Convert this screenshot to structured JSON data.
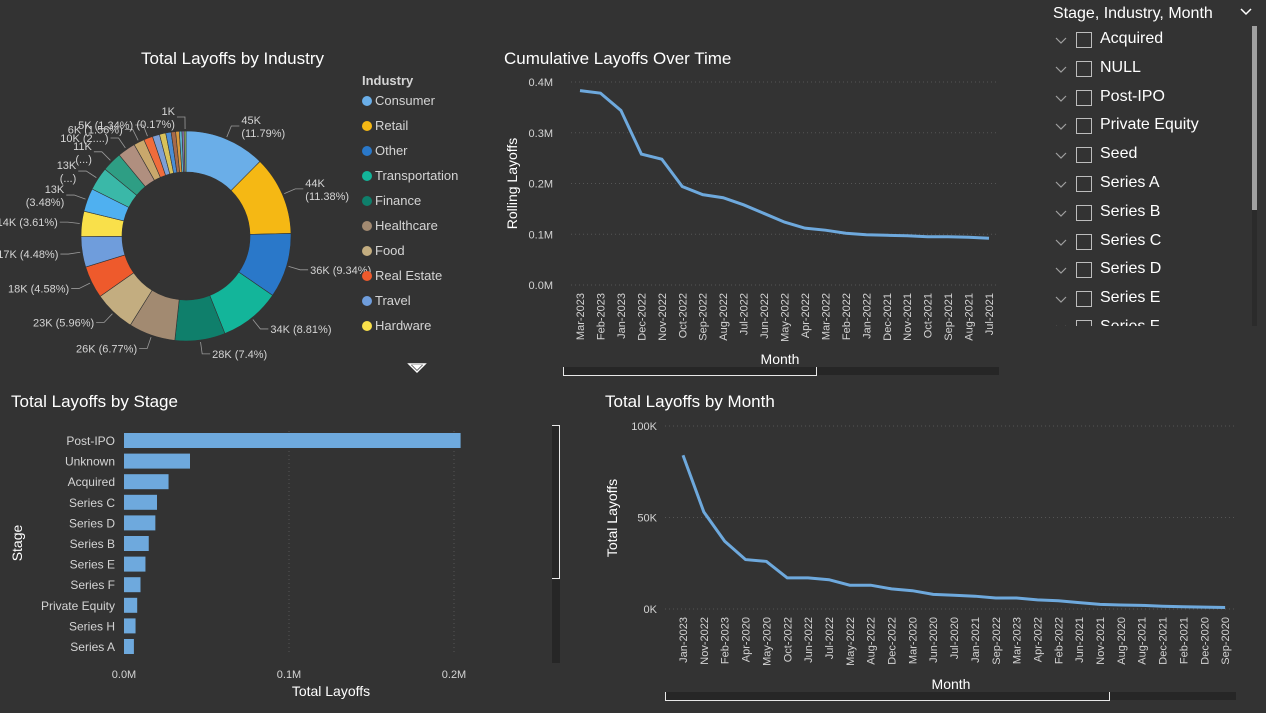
{
  "colors": {
    "background": "#333333",
    "line": "#6ea9dd",
    "bar": "#6ea9dd",
    "grid": "#555555",
    "axis_text": "#d4d4d4"
  },
  "slicer": {
    "header": "Stage, Industry, Month",
    "chevron_icon": "chevron-down-icon",
    "items": [
      "Acquired",
      "NULL",
      "Post-IPO",
      "Private Equity",
      "Seed",
      "Series A",
      "Series B",
      "Series C",
      "Series D",
      "Series E",
      "Series F"
    ]
  },
  "chart_data": [
    {
      "id": "industry_donut",
      "type": "pie",
      "title": "Total Layoffs by Industry",
      "legend_title": "Industry",
      "legend_placement": "right",
      "legend_entries": [
        {
          "name": "Consumer",
          "color": "#6aaee8"
        },
        {
          "name": "Retail",
          "color": "#f5b814"
        },
        {
          "name": "Other",
          "color": "#2a78c9"
        },
        {
          "name": "Transportation",
          "color": "#13b59a"
        },
        {
          "name": "Finance",
          "color": "#0f7f6b"
        },
        {
          "name": "Healthcare",
          "color": "#a28a71"
        },
        {
          "name": "Food",
          "color": "#c3ad80"
        },
        {
          "name": "Real Estate",
          "color": "#ee5a2c"
        },
        {
          "name": "Travel",
          "color": "#6f9ddc"
        },
        {
          "name": "Hardware",
          "color": "#f9e04a"
        }
      ],
      "slices": [
        {
          "value": 45,
          "label": "45K (11.79%)",
          "color": "#6aaee8"
        },
        {
          "value": 44,
          "label": "44K (11.38%)",
          "color": "#f5b814"
        },
        {
          "value": 36,
          "label": "36K (9.34%)",
          "color": "#2a78c9"
        },
        {
          "value": 34,
          "label": "34K (8.81%)",
          "color": "#13b59a"
        },
        {
          "value": 28,
          "label": "28K (7.4%)",
          "color": "#0f7f6b"
        },
        {
          "value": 26,
          "label": "26K (6.77%)",
          "color": "#a28a71"
        },
        {
          "value": 23,
          "label": "23K (5.96%)",
          "color": "#c3ad80"
        },
        {
          "value": 18,
          "label": "18K (4.58%)",
          "color": "#ee5a2c"
        },
        {
          "value": 17,
          "label": "17K (4.48%)",
          "color": "#6f9ddc"
        },
        {
          "value": 14,
          "label": "14K (3.61%)",
          "color": "#f9e04a"
        },
        {
          "value": 13,
          "label": "13K (3.48%)",
          "color": "#4fb0f0"
        },
        {
          "value": 13,
          "label": "13K (...)",
          "color": "#3ab8a8"
        },
        {
          "value": 11,
          "label": "11K (...)",
          "color": "#2e9e84"
        },
        {
          "value": 10,
          "label": "10K (2....)",
          "color": "#b08f7f"
        },
        {
          "value": 6,
          "label": "6K (1.56%)",
          "color": "#c9a86c"
        },
        {
          "value": 5,
          "label": "5K (1.34%)",
          "color": "#f06c3c"
        },
        {
          "value": 4,
          "label": "",
          "color": "#7d9fd6"
        },
        {
          "value": 3.5,
          "label": "",
          "color": "#d9c25a"
        },
        {
          "value": 3,
          "label": "",
          "color": "#4a8ed6"
        },
        {
          "value": 2.5,
          "label": "",
          "color": "#a66a4a"
        },
        {
          "value": 2,
          "label": "",
          "color": "#d89a3e"
        },
        {
          "value": 1.5,
          "label": "",
          "color": "#5ab0c8"
        },
        {
          "value": 1.2,
          "label": "",
          "color": "#8a6fb0"
        },
        {
          "value": 1,
          "label": "1K (0.17%)",
          "color": "#9ac26a"
        }
      ]
    },
    {
      "id": "cumulative_line",
      "type": "line",
      "title": "Cumulative Layoffs Over Time",
      "xlabel": "Month",
      "ylabel": "Rolling Layoffs",
      "y_ticks": [
        "0.4M",
        "0.3M",
        "0.2M",
        "0.1M",
        "0.0M"
      ],
      "ylim": [
        0,
        0.4
      ],
      "x": [
        "Mar-2023",
        "Feb-2023",
        "Jan-2023",
        "Dec-2022",
        "Nov-2022",
        "Oct-2022",
        "Sep-2022",
        "Aug-2022",
        "Jul-2022",
        "Jun-2022",
        "May-2022",
        "Apr-2022",
        "Mar-2022",
        "Feb-2022",
        "Jan-2022",
        "Dec-2021",
        "Nov-2021",
        "Oct-2021",
        "Sep-2021",
        "Aug-2021",
        "Jul-2021"
      ],
      "values": [
        0.383,
        0.378,
        0.344,
        0.258,
        0.248,
        0.194,
        0.178,
        0.172,
        0.158,
        0.141,
        0.124,
        0.112,
        0.108,
        0.102,
        0.099,
        0.098,
        0.097,
        0.095,
        0.095,
        0.094,
        0.092
      ]
    },
    {
      "id": "stage_bar",
      "type": "bar",
      "orientation": "horizontal",
      "title": "Total Layoffs by Stage",
      "xlabel": "Total Layoffs",
      "ylabel": "Stage",
      "x_ticks": [
        "0.0M",
        "0.1M",
        "0.2M"
      ],
      "xlim": [
        0,
        0.2
      ],
      "categories": [
        "Post-IPO",
        "Unknown",
        "Acquired",
        "Series C",
        "Series D",
        "Series B",
        "Series E",
        "Series F",
        "Private Equity",
        "Series H",
        "Series A"
      ],
      "values": [
        0.204,
        0.04,
        0.027,
        0.02,
        0.019,
        0.015,
        0.013,
        0.01,
        0.008,
        0.007,
        0.006
      ]
    },
    {
      "id": "month_line",
      "type": "line",
      "title": "Total Layoffs by Month",
      "xlabel": "Month",
      "ylabel": "Total Layoffs",
      "y_ticks": [
        "100K",
        "50K",
        "0K"
      ],
      "ylim": [
        0,
        100
      ],
      "x": [
        "Jan-2023",
        "Nov-2022",
        "Feb-2023",
        "Apr-2020",
        "May-2020",
        "Oct-2022",
        "Jun-2022",
        "Jul-2022",
        "May-2022",
        "Aug-2022",
        "Dec-2022",
        "Mar-2020",
        "Jun-2020",
        "Jul-2020",
        "Jan-2021",
        "Sep-2022",
        "Mar-2023",
        "Apr-2022",
        "Feb-2022",
        "Jun-2021",
        "Nov-2021",
        "Aug-2020",
        "Aug-2021",
        "Dec-2021",
        "Feb-2021",
        "Dec-2020",
        "Sep-2020"
      ],
      "values": [
        84,
        53,
        37,
        27,
        26,
        17,
        17,
        16,
        13,
        13,
        11,
        10,
        8,
        7.5,
        7,
        6,
        6,
        5,
        4.5,
        3.5,
        2.5,
        2.2,
        2,
        1.5,
        1.2,
        1,
        0.8
      ]
    }
  ]
}
